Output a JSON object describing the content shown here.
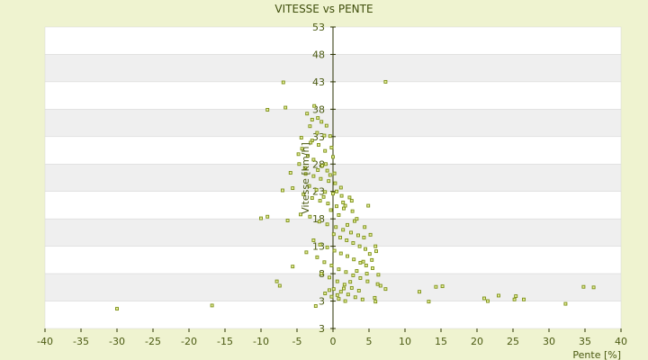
{
  "chart_data": {
    "type": "scatter",
    "title": "VITESSE vs PENTE",
    "xlabel": "Pente [%]",
    "ylabel": "Vitesse [km/h]",
    "xlim": [
      -40,
      40
    ],
    "ylim": [
      -2,
      53
    ],
    "xticks": [
      "-40",
      "-35",
      "-30",
      "-25",
      "-20",
      "-15",
      "-10",
      "-5",
      "0",
      "5",
      "10",
      "15",
      "20",
      "25",
      "30",
      "35",
      "40"
    ],
    "yticks": [
      "53",
      "48",
      "43",
      "38",
      "33",
      "28",
      "23",
      "18",
      "13",
      "8",
      "3",
      "3"
    ],
    "grid": "horizontal bands",
    "colors": {
      "background": "#eff3d0",
      "band_light": "#ffffff",
      "band_dark": "#efefef",
      "marker": "#7a8e13",
      "marker_fill": "#e6ef9c",
      "axis": "#2a3200"
    },
    "series": [
      {
        "points": [
          [
            -30.0,
            1.6
          ],
          [
            -16.8,
            2.2
          ],
          [
            -2.4,
            2.1
          ],
          [
            13.3,
            2.9
          ],
          [
            32.3,
            2.5
          ],
          [
            21.5,
            3.0
          ],
          [
            23.0,
            4.0
          ],
          [
            21.0,
            3.5
          ],
          [
            26.5,
            3.3
          ],
          [
            25.2,
            3.3
          ],
          [
            25.4,
            3.9
          ],
          [
            34.8,
            5.6
          ],
          [
            36.2,
            5.5
          ],
          [
            12.0,
            4.7
          ],
          [
            14.3,
            5.6
          ],
          [
            15.2,
            5.7
          ],
          [
            -6.9,
            42.9
          ],
          [
            7.3,
            43.0
          ],
          [
            -9.1,
            37.9
          ],
          [
            -6.6,
            38.3
          ],
          [
            -3.6,
            37.2
          ],
          [
            -2.6,
            38.6
          ],
          [
            -2.9,
            36.1
          ],
          [
            -2.1,
            36.4
          ],
          [
            -1.6,
            35.7
          ],
          [
            -3.2,
            34.9
          ],
          [
            -2.2,
            33.7
          ],
          [
            -1.2,
            33.2
          ],
          [
            -0.4,
            33.1
          ],
          [
            -2.9,
            32.3
          ],
          [
            -2.0,
            31.5
          ],
          [
            -1.1,
            30.4
          ],
          [
            -0.2,
            31.0
          ],
          [
            -4.8,
            29.8
          ],
          [
            -4.3,
            30.8
          ],
          [
            -3.5,
            29.5
          ],
          [
            -2.7,
            28.8
          ],
          [
            -1.5,
            27.7
          ],
          [
            -0.8,
            26.8
          ],
          [
            0.2,
            26.3
          ],
          [
            -4.7,
            28.0
          ],
          [
            -5.9,
            26.4
          ],
          [
            -3.8,
            26.2
          ],
          [
            -2.7,
            25.8
          ],
          [
            -1.7,
            25.3
          ],
          [
            -0.6,
            24.9
          ],
          [
            0.3,
            24.5
          ],
          [
            1.1,
            23.7
          ],
          [
            -3.3,
            24.0
          ],
          [
            -2.3,
            23.3
          ],
          [
            -1.1,
            22.9
          ],
          [
            0.0,
            22.6
          ],
          [
            1.2,
            22.2
          ],
          [
            2.3,
            21.9
          ],
          [
            -7.0,
            23.2
          ],
          [
            -5.6,
            23.6
          ],
          [
            -4.1,
            22.5
          ],
          [
            -2.9,
            21.8
          ],
          [
            -1.8,
            21.3
          ],
          [
            -0.7,
            20.8
          ],
          [
            0.5,
            20.3
          ],
          [
            1.5,
            19.9
          ],
          [
            2.7,
            19.4
          ],
          [
            4.9,
            20.4
          ],
          [
            -10.0,
            18.1
          ],
          [
            -9.1,
            18.4
          ],
          [
            -6.3,
            17.7
          ],
          [
            -4.5,
            18.8
          ],
          [
            -3.2,
            18.4
          ],
          [
            -1.9,
            17.5
          ],
          [
            -0.8,
            17.0
          ],
          [
            0.4,
            16.5
          ],
          [
            1.4,
            16.0
          ],
          [
            2.5,
            15.5
          ],
          [
            3.5,
            15.0
          ],
          [
            4.3,
            14.6
          ],
          [
            0.1,
            15.2
          ],
          [
            1.0,
            14.6
          ],
          [
            1.9,
            14.1
          ],
          [
            2.8,
            13.6
          ],
          [
            3.7,
            13.0
          ],
          [
            4.5,
            12.5
          ],
          [
            -2.7,
            14.1
          ],
          [
            -1.8,
            13.3
          ],
          [
            -0.8,
            12.8
          ],
          [
            0.2,
            12.2
          ],
          [
            1.1,
            11.7
          ],
          [
            2.0,
            11.2
          ],
          [
            2.9,
            10.6
          ],
          [
            3.8,
            10.0
          ],
          [
            4.6,
            9.5
          ],
          [
            5.5,
            9.0
          ],
          [
            -3.7,
            11.9
          ],
          [
            -2.2,
            11.0
          ],
          [
            -1.2,
            10.1
          ],
          [
            -0.2,
            9.5
          ],
          [
            0.8,
            8.8
          ],
          [
            1.8,
            8.3
          ],
          [
            2.8,
            7.7
          ],
          [
            3.8,
            7.2
          ],
          [
            4.8,
            6.6
          ],
          [
            -5.6,
            9.3
          ],
          [
            -1.6,
            8.0
          ],
          [
            -0.5,
            7.3
          ],
          [
            0.6,
            6.6
          ],
          [
            1.6,
            6.0
          ],
          [
            2.6,
            5.4
          ],
          [
            3.6,
            4.9
          ],
          [
            -7.8,
            6.6
          ],
          [
            -7.4,
            5.8
          ],
          [
            0.1,
            5.2
          ],
          [
            1.1,
            4.7
          ],
          [
            2.1,
            4.2
          ],
          [
            3.1,
            3.7
          ],
          [
            4.1,
            3.3
          ],
          [
            5.9,
            2.9
          ],
          [
            5.8,
            3.6
          ],
          [
            6.6,
            5.8
          ],
          [
            7.3,
            5.2
          ],
          [
            6.2,
            6.1
          ],
          [
            -1.1,
            4.4
          ],
          [
            -0.2,
            3.8
          ],
          [
            0.8,
            3.4
          ],
          [
            1.7,
            3.0
          ],
          [
            -0.5,
            5.0
          ],
          [
            0.6,
            4.1
          ],
          [
            1.5,
            5.3
          ],
          [
            2.4,
            6.5
          ],
          [
            3.3,
            8.5
          ],
          [
            4.2,
            10.2
          ],
          [
            5.1,
            11.6
          ],
          [
            5.9,
            13.0
          ],
          [
            2.0,
            16.9
          ],
          [
            3.0,
            17.6
          ],
          [
            0.8,
            18.7
          ],
          [
            -0.3,
            19.6
          ],
          [
            1.7,
            20.4
          ],
          [
            2.6,
            21.3
          ],
          [
            -1.3,
            22.0
          ],
          [
            -2.1,
            26.9
          ],
          [
            -1.0,
            28.0
          ],
          [
            0.0,
            29.3
          ],
          [
            -3.1,
            31.9
          ],
          [
            -0.9,
            35.0
          ],
          [
            -4.4,
            32.8
          ],
          [
            -3.9,
            27.3
          ],
          [
            -0.4,
            26.0
          ],
          [
            0.5,
            23.0
          ],
          [
            1.4,
            21.0
          ],
          [
            3.3,
            18.0
          ],
          [
            4.4,
            16.5
          ],
          [
            5.2,
            15.1
          ],
          [
            6.0,
            12.1
          ],
          [
            5.4,
            10.5
          ],
          [
            4.7,
            8.0
          ],
          [
            6.3,
            7.8
          ]
        ]
      }
    ]
  }
}
